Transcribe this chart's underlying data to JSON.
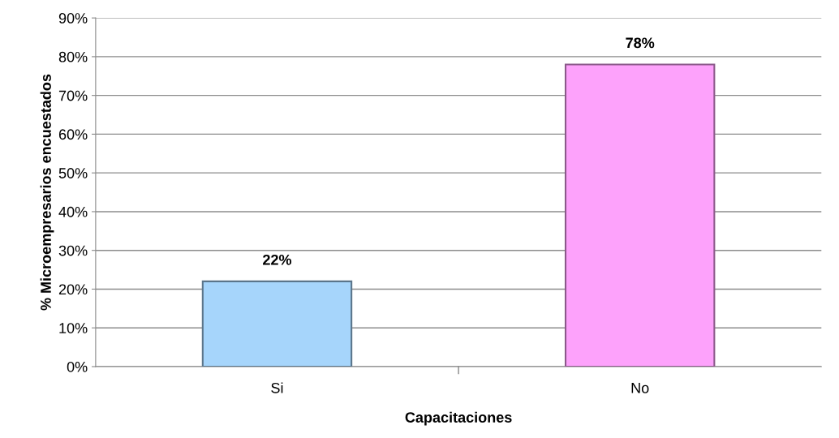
{
  "chart_data": {
    "type": "bar",
    "xlabel": "Capacitaciones",
    "ylabel": "% Microempresarios encuestados",
    "categories": [
      "Si",
      "No"
    ],
    "values": [
      22,
      78
    ],
    "colors": [
      "#a6d5fb",
      "#fda2fb"
    ],
    "value_labels": [
      "22%",
      "78%"
    ],
    "ylim": [
      0,
      90
    ],
    "yticks": [
      {
        "value": 0,
        "label": "0%"
      },
      {
        "value": 10,
        "label": "10%"
      },
      {
        "value": 20,
        "label": "20%"
      },
      {
        "value": 30,
        "label": "30%"
      },
      {
        "value": 40,
        "label": "40%"
      },
      {
        "value": 50,
        "label": "50%"
      },
      {
        "value": 60,
        "label": "60%"
      },
      {
        "value": 70,
        "label": "70%"
      },
      {
        "value": 80,
        "label": "80%"
      },
      {
        "value": 90,
        "label": "90%"
      }
    ],
    "grid": "y"
  }
}
